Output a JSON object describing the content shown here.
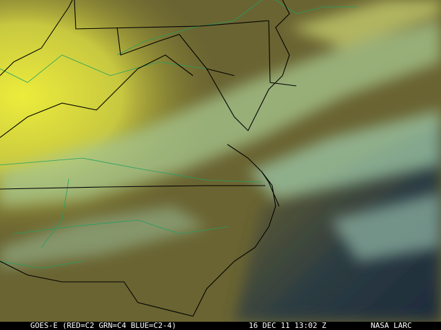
{
  "caption": {
    "satellite": "GOES-E (RED=C2 GRN=C4 BLUE=C2-4)",
    "datetime": "16 DEC 11 13:02 Z",
    "source": "NASA LARC"
  },
  "colors": {
    "land": "#6b6630",
    "cloud_yellow": "#e0e040",
    "cloud_cyan": "#b8e0b0",
    "ocean": "#2a3a40",
    "state_borders": "#000000",
    "county_lines": "#20a060"
  }
}
